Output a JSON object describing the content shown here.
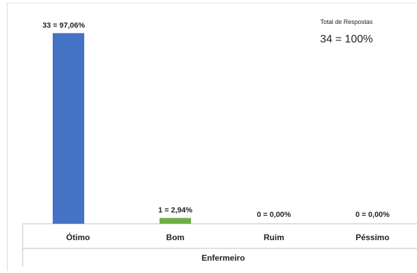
{
  "chart_data": {
    "type": "bar",
    "categories": [
      "Ótimo",
      "Bom",
      "Ruim",
      "Péssimo"
    ],
    "values": [
      33,
      1,
      0,
      0
    ],
    "data_labels": [
      "33 = 97,06%",
      "1 = 2,94%",
      "0 = 0,00%",
      "0 = 0,00%"
    ],
    "colors": [
      "#4472c4",
      "#70ad47",
      "#a5a5a5",
      "#ffc000"
    ],
    "xlabel": "Enfermeiro",
    "ylabel": "",
    "ylim": [
      0,
      34
    ],
    "grid": false,
    "legend": "none"
  },
  "total": {
    "title": "Total de Respostas",
    "value": "34 = 100%"
  }
}
